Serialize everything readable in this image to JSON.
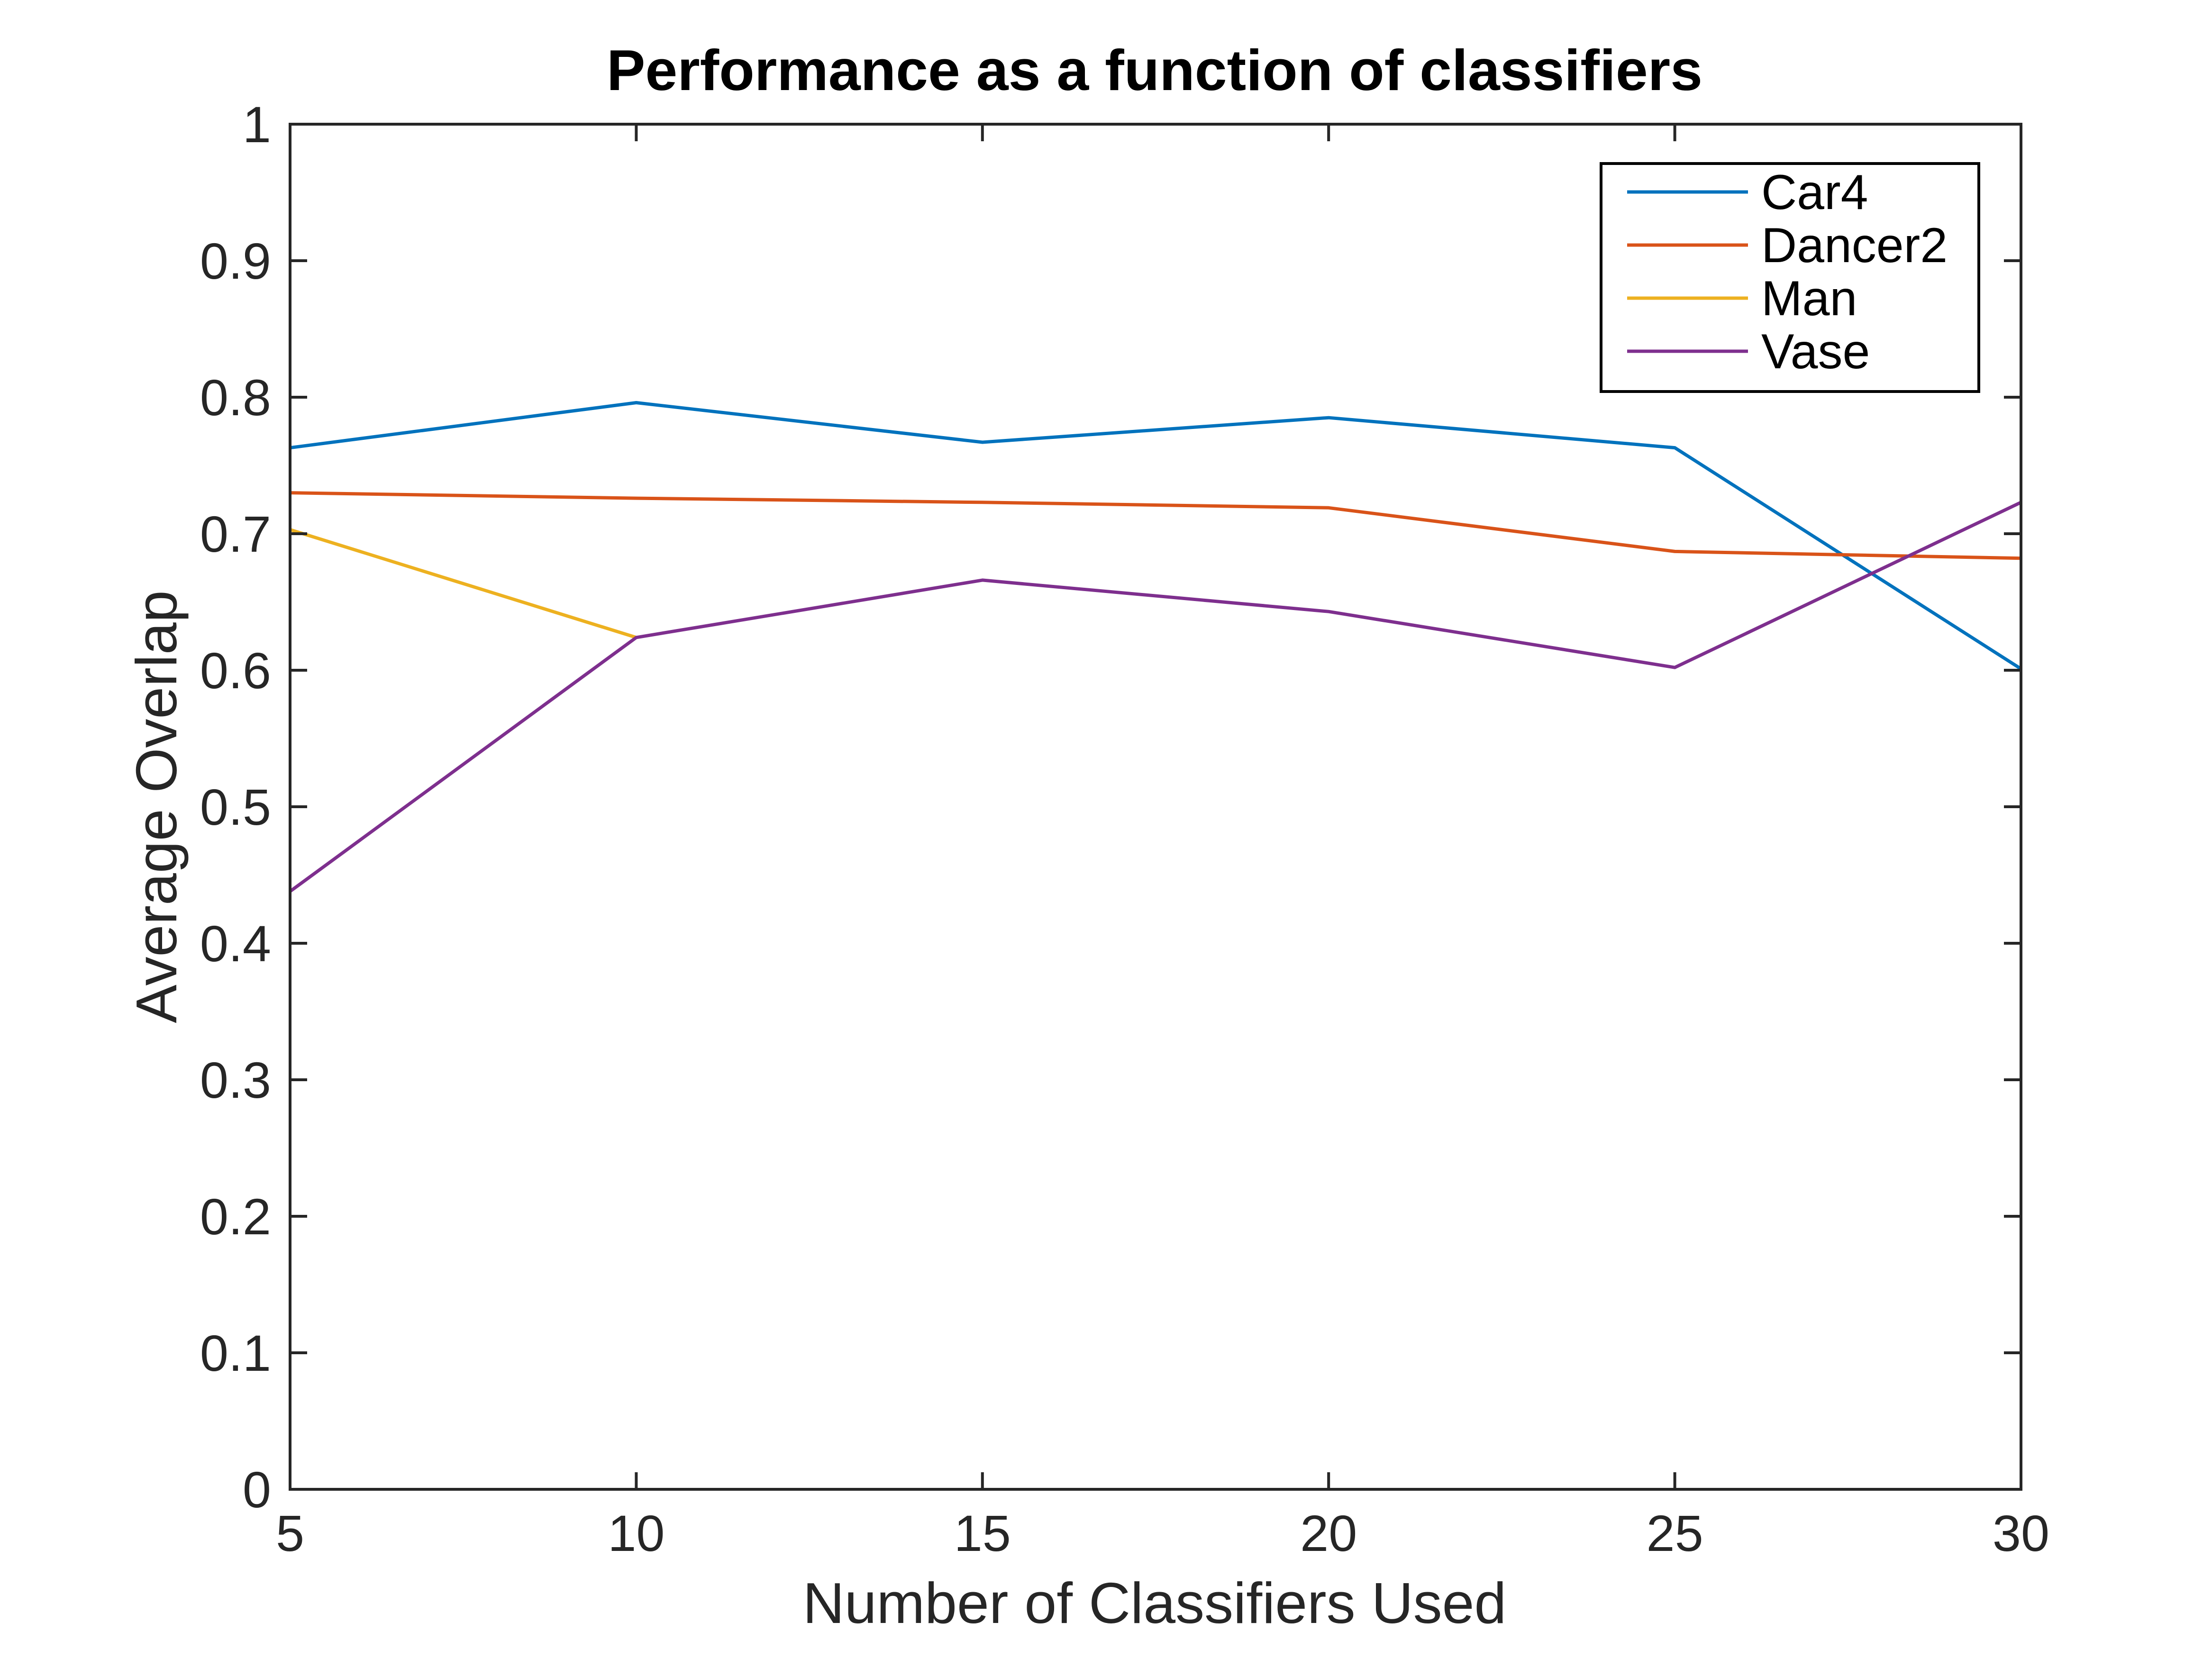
{
  "chart_data": {
    "type": "line",
    "title": "Performance as a function of classifiers",
    "xlabel": "Number of Classifiers Used",
    "ylabel": "Average Overlap",
    "x": [
      5,
      10,
      15,
      20,
      25,
      30
    ],
    "xlim": [
      5,
      30
    ],
    "ylim": [
      0,
      1
    ],
    "xticks": [
      5,
      10,
      15,
      20,
      25,
      30
    ],
    "xtick_labels": [
      "5",
      "10",
      "15",
      "20",
      "25",
      "30"
    ],
    "yticks": [
      0,
      0.1,
      0.2,
      0.3,
      0.4,
      0.5,
      0.6,
      0.7,
      0.8,
      0.9,
      1
    ],
    "ytick_labels": [
      "0",
      "0.1",
      "0.2",
      "0.3",
      "0.4",
      "0.5",
      "0.6",
      "0.7",
      "0.8",
      "0.9",
      "1"
    ],
    "grid": false,
    "legend_position": "top-right",
    "series": [
      {
        "name": "Car4",
        "color": "#0072BD",
        "x": [
          5,
          10,
          15,
          20,
          25,
          30
        ],
        "values": [
          0.763,
          0.796,
          0.767,
          0.785,
          0.763,
          0.601
        ]
      },
      {
        "name": "Dancer2",
        "color": "#D95319",
        "x": [
          5,
          10,
          15,
          20,
          25,
          30
        ],
        "values": [
          0.73,
          0.726,
          0.723,
          0.719,
          0.687,
          0.682
        ]
      },
      {
        "name": "Man",
        "color": "#EDB120",
        "x": [
          5,
          10
        ],
        "values": [
          0.703,
          0.624
        ]
      },
      {
        "name": "Vase",
        "color": "#7E2F8E",
        "x": [
          5,
          10,
          15,
          20,
          25,
          30
        ],
        "values": [
          0.438,
          0.624,
          0.666,
          0.643,
          0.602,
          0.723
        ]
      }
    ]
  }
}
